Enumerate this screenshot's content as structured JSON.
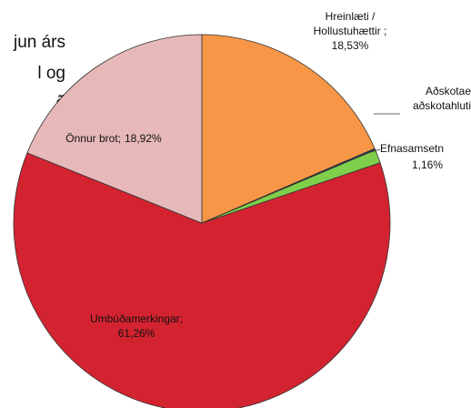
{
  "chart_data": {
    "type": "pie",
    "title": [
      "jun árs",
      "l og",
      "ð"
    ],
    "categories": [
      [
        "Hreinlæti /",
        "Hollustuhættir ;"
      ],
      [
        "Aðskotae",
        "aðskotahluti"
      ],
      [
        "Efnasamsetn"
      ],
      [
        "Umbúðamerkingar;"
      ],
      [
        "Önnur brot;"
      ]
    ],
    "values": [
      18.53,
      0.13,
      1.16,
      61.26,
      18.92
    ],
    "value_labels": [
      "18,53%",
      null,
      "1,16%",
      "61,26%",
      "18,92%"
    ],
    "colors": [
      "#f79646",
      "#1f3a5f",
      "#7fcf4a",
      "#d42330",
      "#e6b9b8"
    ]
  }
}
